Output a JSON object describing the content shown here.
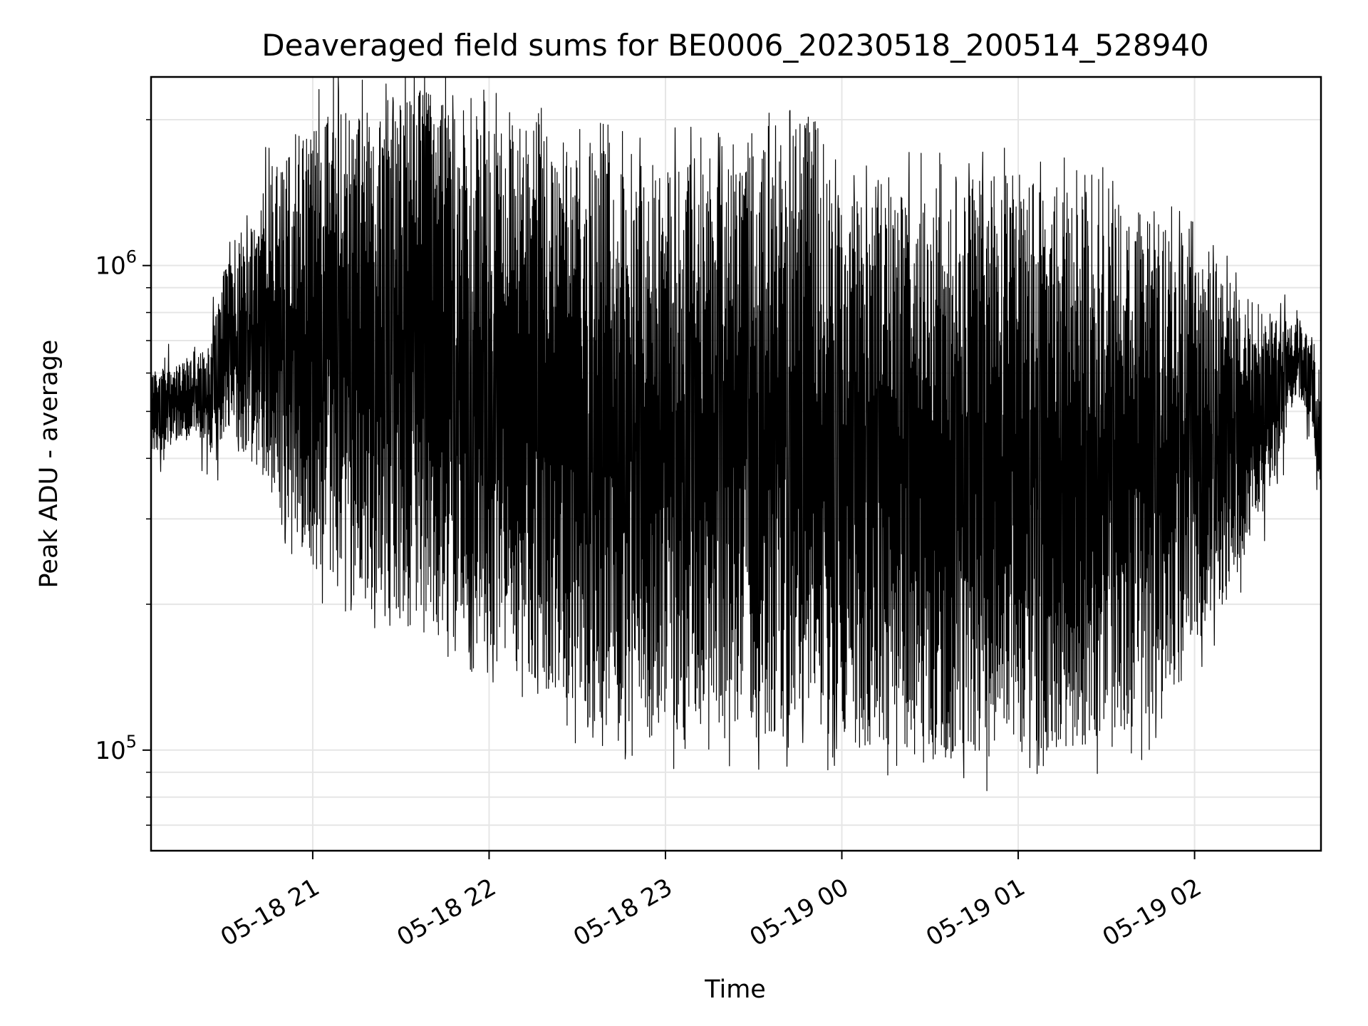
{
  "chart_data": {
    "type": "line",
    "title": "Deaveraged field sums for BE0006_20230518_200514_528940",
    "xlabel": "Time",
    "ylabel": "Peak ADU - average",
    "yscale": "log",
    "ylim": [
      62000,
      2450000
    ],
    "xlim": [
      "05-18 20:05",
      "05-19 02:43"
    ],
    "grid": true,
    "line_color": "#000000",
    "grid_color": "#e6e6e6",
    "x_ticks": [
      {
        "value": "05-18 21:00",
        "label": "05-18 21"
      },
      {
        "value": "05-18 22:00",
        "label": "05-18 22"
      },
      {
        "value": "05-18 23:00",
        "label": "05-18 23"
      },
      {
        "value": "05-19 00:00",
        "label": "05-19 00"
      },
      {
        "value": "05-19 01:00",
        "label": "05-19 01"
      },
      {
        "value": "05-19 02:00",
        "label": "05-19 02"
      }
    ],
    "y_ticks": [
      {
        "value": 100000,
        "base": "10",
        "exp": "5"
      },
      {
        "value": 1000000,
        "base": "10",
        "exp": "6"
      }
    ],
    "series": [
      {
        "x": [
          "05-18 20:05",
          "05-18 20:10",
          "05-18 20:15",
          "05-18 20:20",
          "05-18 20:25",
          "05-18 20:30",
          "05-18 20:35",
          "05-18 20:40",
          "05-18 20:45",
          "05-18 20:50",
          "05-18 20:55",
          "05-18 21:00",
          "05-18 21:05",
          "05-18 21:10",
          "05-18 21:15",
          "05-18 21:20",
          "05-18 21:25",
          "05-18 21:30",
          "05-18 21:35",
          "05-18 21:40",
          "05-18 21:45",
          "05-18 21:50",
          "05-18 21:55",
          "05-18 22:00",
          "05-18 22:05",
          "05-18 22:10",
          "05-18 22:15",
          "05-18 22:20",
          "05-18 22:25",
          "05-18 22:30",
          "05-18 22:35",
          "05-18 22:40",
          "05-18 22:45",
          "05-18 22:50",
          "05-18 22:55",
          "05-18 23:00",
          "05-18 23:05",
          "05-18 23:10",
          "05-18 23:15",
          "05-18 23:20",
          "05-18 23:25",
          "05-18 23:30",
          "05-18 23:35",
          "05-18 23:40",
          "05-18 23:45",
          "05-18 23:50",
          "05-18 23:55",
          "05-19 00:00",
          "05-19 00:05",
          "05-19 00:10",
          "05-19 00:15",
          "05-19 00:20",
          "05-19 00:25",
          "05-19 00:30",
          "05-19 00:35",
          "05-19 00:40",
          "05-19 00:45",
          "05-19 00:50",
          "05-19 00:55",
          "05-19 01:00",
          "05-19 01:05",
          "05-19 01:10",
          "05-19 01:15",
          "05-19 01:20",
          "05-19 01:25",
          "05-19 01:30",
          "05-19 01:35",
          "05-19 01:40",
          "05-19 01:45",
          "05-19 01:50",
          "05-19 01:55",
          "05-19 02:00",
          "05-19 02:05",
          "05-19 02:10",
          "05-19 02:15",
          "05-19 02:20",
          "05-19 02:25",
          "05-19 02:30",
          "05-19 02:35",
          "05-19 02:40",
          "05-19 02:43"
        ],
        "low": [
          410000,
          420000,
          440000,
          450000,
          400000,
          440000,
          420000,
          390000,
          340000,
          300000,
          270000,
          240000,
          230000,
          220000,
          210000,
          200000,
          190000,
          180000,
          175000,
          170000,
          170000,
          165000,
          160000,
          155000,
          150000,
          145000,
          140000,
          130000,
          125000,
          120000,
          115000,
          110000,
          108000,
          105000,
          105000,
          105000,
          105000,
          105000,
          105000,
          105000,
          106000,
          106000,
          106000,
          106000,
          108000,
          108000,
          106000,
          104000,
          102000,
          100000,
          98000,
          97000,
          96000,
          95000,
          94000,
          95000,
          95000,
          96000,
          97000,
          98000,
          98000,
          100000,
          100000,
          102000,
          104000,
          106000,
          108000,
          110000,
          115000,
          125000,
          140000,
          160000,
          185000,
          200000,
          230000,
          270000,
          330000,
          420000,
          530000,
          480000,
          330000
        ],
        "high": [
          600000,
          620000,
          640000,
          650000,
          680000,
          1000000,
          1100000,
          1200000,
          1600000,
          1800000,
          1900000,
          2000000,
          2100000,
          2150000,
          2150000,
          2150000,
          2200000,
          2200000,
          2300000,
          2300000,
          2200000,
          2100000,
          2050000,
          2000000,
          2000000,
          2000000,
          2000000,
          1900000,
          1850000,
          1800000,
          1800000,
          1750000,
          1700000,
          1700000,
          1700000,
          1650000,
          1650000,
          1650000,
          1600000,
          1600000,
          1650000,
          1700000,
          1800000,
          1900000,
          2000000,
          2100000,
          1600000,
          1300000,
          1400000,
          1450000,
          1500000,
          1500000,
          1500000,
          1500000,
          1500000,
          1500000,
          1550000,
          1550000,
          1550000,
          1550000,
          1500000,
          1500000,
          1450000,
          1400000,
          1400000,
          1350000,
          1300000,
          1300000,
          1250000,
          1200000,
          1150000,
          1050000,
          1000000,
          950000,
          900000,
          850000,
          800000,
          780000,
          780000,
          700000,
          500000
        ]
      }
    ]
  }
}
